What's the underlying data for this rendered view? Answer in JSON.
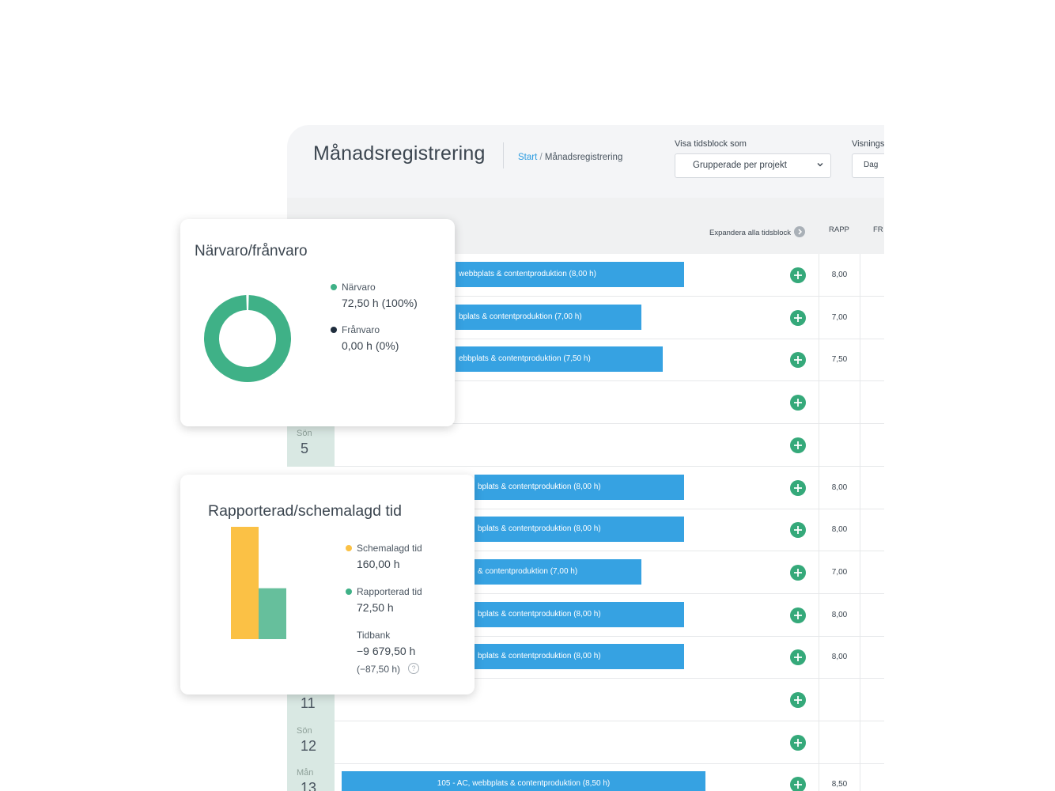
{
  "header": {
    "title": "Månadsregistrering",
    "breadcrumb": {
      "start": "Start",
      "separator": "/",
      "current": "Månadsregistrering"
    },
    "view_block_label": "Visa tidsblock som",
    "view_block_value": "Grupperade per projekt",
    "display_label": "Visnings",
    "display_value": "Dag"
  },
  "table": {
    "expand_all": "Expandera alla tidsblock",
    "col_rapp": "RAPP",
    "col_fr": "FR",
    "rows": [
      {
        "bar": "webbplats & contentproduktion (8,00 h)",
        "rapp": "8,00",
        "day_name": "",
        "day_num": ""
      },
      {
        "bar": "bplats & contentproduktion (7,00 h)",
        "rapp": "7,00",
        "day_name": "",
        "day_num": ""
      },
      {
        "bar": "ebbplats & contentproduktion (7,50 h)",
        "rapp": "7,50",
        "day_name": "",
        "day_num": ""
      },
      {
        "bar": "",
        "rapp": "",
        "day_name": "",
        "day_num": ""
      },
      {
        "bar": "",
        "rapp": "",
        "day_name": "Sön",
        "day_num": "5"
      },
      {
        "bar": "bplats & contentproduktion (8,00 h)",
        "rapp": "8,00",
        "day_name": "",
        "day_num": ""
      },
      {
        "bar": "bplats & contentproduktion (8,00 h)",
        "rapp": "8,00",
        "day_name": "",
        "day_num": ""
      },
      {
        "bar": "& contentproduktion (7,00 h)",
        "rapp": "7,00",
        "day_name": "",
        "day_num": ""
      },
      {
        "bar": "bplats & contentproduktion (8,00 h)",
        "rapp": "8,00",
        "day_name": "",
        "day_num": ""
      },
      {
        "bar": "bplats & contentproduktion (8,00 h)",
        "rapp": "8,00",
        "day_name": "",
        "day_num": ""
      },
      {
        "bar": "",
        "rapp": "",
        "day_name": "",
        "day_num": "11"
      },
      {
        "bar": "",
        "rapp": "",
        "day_name": "Sön",
        "day_num": "12"
      },
      {
        "bar": "105 - AC, webbplats & contentproduktion (8,50 h)",
        "rapp": "8,50",
        "day_name": "Mån",
        "day_num": "13"
      }
    ]
  },
  "attendance": {
    "title": "Närvaro/frånvaro",
    "present_label": "Närvaro",
    "present_value": "72,50 h (100%)",
    "absent_label": "Frånvaro",
    "absent_value": "0,00 h (0%)"
  },
  "reported": {
    "title": "Rapporterad/schemalagd tid",
    "scheduled_label": "Schemalagd tid",
    "scheduled_value": "160,00 h",
    "reported_label": "Rapporterad tid",
    "reported_value": "72,50 h",
    "timebank_label": "Tidbank",
    "timebank_value": "−9 679,50 h",
    "timebank_sub": "(−87,50 h)",
    "help_glyph": "?"
  },
  "chart_data": [
    {
      "type": "pie",
      "title": "Närvaro/frånvaro",
      "categories": [
        "Närvaro",
        "Frånvaro"
      ],
      "values": [
        72.5,
        0
      ],
      "colors": [
        "#3fb187",
        "#1f2d3d"
      ]
    },
    {
      "type": "bar",
      "title": "Rapporterad/schemalagd tid",
      "categories": [
        "Schemalagd tid",
        "Rapporterad tid"
      ],
      "values": [
        160,
        72.5
      ],
      "colors": [
        "#fbc145",
        "#66bf9c"
      ]
    }
  ],
  "colors": {
    "accent_blue": "#36a2e2",
    "add_green": "#35a97a",
    "present_green": "#3fb187",
    "absent_dark": "#1f2d3d",
    "scheduled_yellow": "#fbc145",
    "reported_green": "#66bf9c"
  },
  "icons": {
    "add": "plus-circle-icon",
    "expand": "chevron-right-circle-icon",
    "select": "chevron-down-icon",
    "help": "question-circle-icon"
  }
}
